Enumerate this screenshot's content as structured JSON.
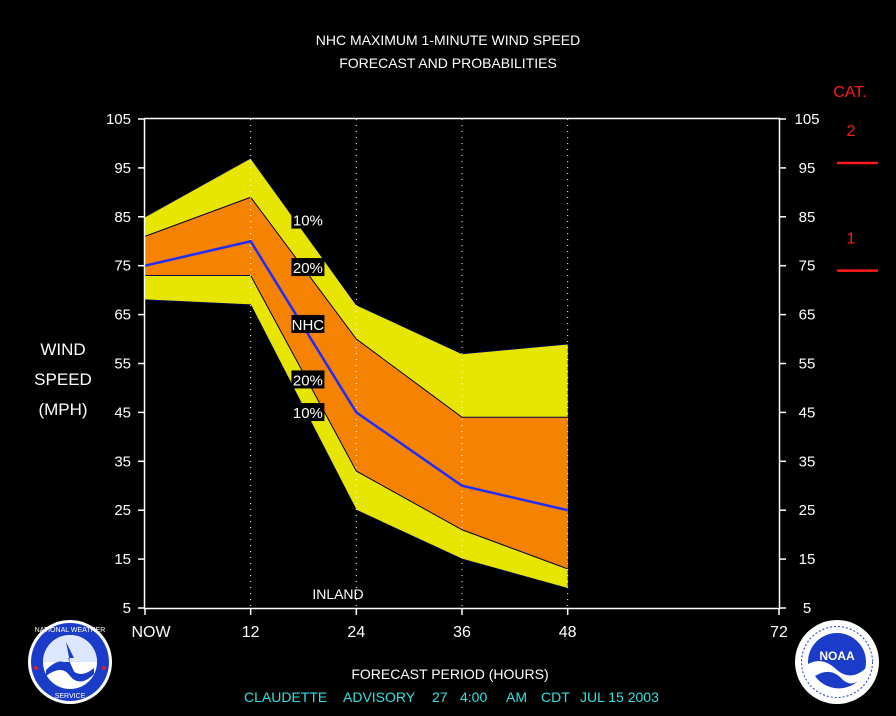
{
  "chart_data": {
    "type": "area",
    "title_lines": [
      "NHC MAXIMUM 1-MINUTE WIND SPEED",
      "FORECAST AND PROBABILITIES"
    ],
    "ylabel_lines": [
      "WIND",
      "SPEED",
      "(MPH)"
    ],
    "xlabel": "FORECAST PERIOD (HOURS)",
    "x": [
      0,
      12,
      24,
      36,
      48
    ],
    "x_tick_values": [
      0,
      12,
      24,
      36,
      48,
      72
    ],
    "x_tick_labels": [
      "NOW",
      "12",
      "24",
      "36",
      "48",
      "72"
    ],
    "xlim": [
      0,
      72
    ],
    "ylim": [
      5,
      105
    ],
    "y_ticks": [
      5,
      15,
      25,
      35,
      45,
      55,
      65,
      75,
      85,
      95,
      105
    ],
    "vertical_gridlines": [
      12,
      24,
      36,
      48
    ],
    "series": [
      {
        "name": "10%",
        "role": "upper_outer",
        "values": [
          85,
          97,
          67,
          57,
          59
        ]
      },
      {
        "name": "20%",
        "role": "upper_inner",
        "values": [
          81,
          89,
          60,
          44,
          44
        ]
      },
      {
        "name": "NHC",
        "role": "forecast",
        "values": [
          75,
          80,
          45,
          30,
          25
        ]
      },
      {
        "name": "20%",
        "role": "lower_inner",
        "values": [
          73,
          73,
          33,
          21,
          13
        ]
      },
      {
        "name": "10%",
        "role": "lower_outer",
        "values": [
          68,
          67,
          25,
          15,
          9
        ]
      }
    ],
    "band_labels": [
      "10%",
      "20%",
      "NHC",
      "20%",
      "10%"
    ],
    "colors": {
      "outer_band": "#e6e600",
      "inner_band": "#f58200",
      "forecast_line": "#1f2bff",
      "category": "#ff1a1a",
      "advisory": "#33e0e0"
    },
    "annotation": "INLAND",
    "category_label": "CAT.",
    "categories": [
      {
        "label": "2",
        "threshold_mph": 96
      },
      {
        "label": "1",
        "threshold_mph": 74
      }
    ]
  },
  "advisory": {
    "storm": "CLAUDETTE",
    "label": "ADVISORY",
    "number": "27",
    "time": "4:00",
    "ampm": "AM",
    "zone": "CDT",
    "date": "JUL 15 2003"
  },
  "logos": {
    "left": {
      "icon": "nws-logo-icon",
      "text": "NATIONAL WEATHER SERVICE"
    },
    "right": {
      "icon": "noaa-logo-icon",
      "text": "NOAA"
    }
  }
}
